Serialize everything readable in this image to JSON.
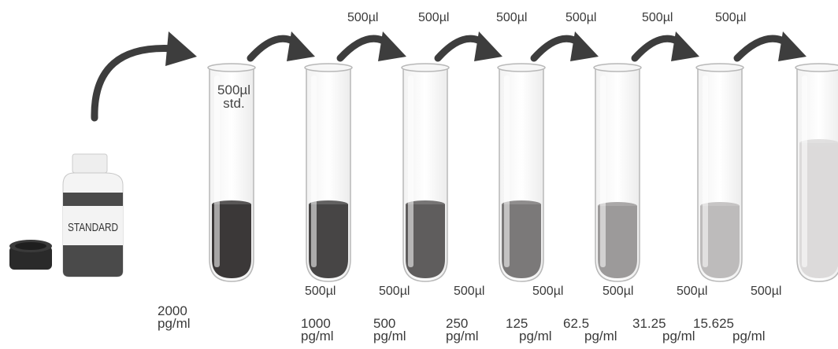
{
  "transfer_volume_top": [
    "500µl",
    "500µl",
    "500µl",
    "500µl",
    "500µl",
    "500µl"
  ],
  "diluent_volume_bottom": [
    "500µl",
    "500µl",
    "500µl",
    "500µl",
    "500µl",
    "500µl",
    "500µl"
  ],
  "standard_tube_label": {
    "line1": "500µl",
    "line2": "std."
  },
  "bottle_label": "STANDARD",
  "concentrations": [
    {
      "value": "2000",
      "unit": "pg/ml"
    },
    {
      "value": "1000",
      "unit": "pg/ml"
    },
    {
      "value": "500",
      "unit": "pg/ml"
    },
    {
      "value": "250",
      "unit": "pg/ml"
    },
    {
      "value": "125",
      "unit": "pg/ml"
    },
    {
      "value": "62.5",
      "unit": "pg/ml"
    },
    {
      "value": "31.25",
      "unit": "pg/ml"
    },
    {
      "value": "15.625",
      "unit": "pg/ml"
    }
  ],
  "colors": {
    "arrow": "#3d3d3d",
    "tube_liquids": [
      "#3b3838",
      "#474545",
      "#5f5d5d",
      "#7b7979",
      "#9c9a9a",
      "#bdbbbb",
      "#dcdada"
    ],
    "bottle_liquid": "#4a4a4a",
    "cap": "#2a2a2a"
  }
}
